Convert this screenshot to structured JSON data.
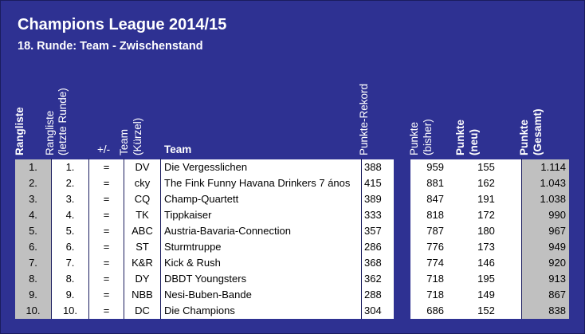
{
  "title": "Champions League 2014/15",
  "subtitle": "18. Runde: Team - Zwischenstand",
  "headers": {
    "rangliste": "Rangliste",
    "rangliste_letzte_1": "Rangliste",
    "rangliste_letzte_2": "(letzte Runde)",
    "plusminus": "+/-",
    "team_kuerzel_1": "Team",
    "team_kuerzel_2": "(Kürzel)",
    "team": "Team",
    "rekord": "Punkte-Rekord",
    "bisher_1": "Punkte",
    "bisher_2": "(bisher)",
    "neu_1": "Punkte",
    "neu_2": "(neu)",
    "gesamt_1": "Punkte",
    "gesamt_2": "(Gesamt)"
  },
  "rows": [
    {
      "rank": "1.",
      "last_rank": "1.",
      "change": "=",
      "abbr": "DV",
      "team": "Die Vergesslichen",
      "record": "388",
      "prev": "959",
      "new": "155",
      "total": "1.114"
    },
    {
      "rank": "2.",
      "last_rank": "2.",
      "change": "=",
      "abbr": "cky",
      "team": "The Fink Funny Havana Drinkers 7 ános",
      "record": "415",
      "prev": "881",
      "new": "162",
      "total": "1.043"
    },
    {
      "rank": "3.",
      "last_rank": "3.",
      "change": "=",
      "abbr": "CQ",
      "team": "Champ-Quartett",
      "record": "389",
      "prev": "847",
      "new": "191",
      "total": "1.038"
    },
    {
      "rank": "4.",
      "last_rank": "4.",
      "change": "=",
      "abbr": "TK",
      "team": "Tippkaiser",
      "record": "333",
      "prev": "818",
      "new": "172",
      "total": "990"
    },
    {
      "rank": "5.",
      "last_rank": "5.",
      "change": "=",
      "abbr": "ABC",
      "team": "Austria-Bavaria-Connection",
      "record": "357",
      "prev": "787",
      "new": "180",
      "total": "967"
    },
    {
      "rank": "6.",
      "last_rank": "6.",
      "change": "=",
      "abbr": "ST",
      "team": "Sturmtruppe",
      "record": "286",
      "prev": "776",
      "new": "173",
      "total": "949"
    },
    {
      "rank": "7.",
      "last_rank": "7.",
      "change": "=",
      "abbr": "K&R",
      "team": "Kick & Rush",
      "record": "368",
      "prev": "774",
      "new": "146",
      "total": "920"
    },
    {
      "rank": "8.",
      "last_rank": "8.",
      "change": "=",
      "abbr": "DY",
      "team": "DBDT Youngsters",
      "record": "362",
      "prev": "718",
      "new": "195",
      "total": "913"
    },
    {
      "rank": "9.",
      "last_rank": "9.",
      "change": "=",
      "abbr": "NBB",
      "team": "Nesi-Buben-Bande",
      "record": "288",
      "prev": "718",
      "new": "149",
      "total": "867"
    },
    {
      "rank": "10.",
      "last_rank": "10.",
      "change": "=",
      "abbr": "DC",
      "team": "Die Champions",
      "record": "304",
      "prev": "686",
      "new": "152",
      "total": "838"
    }
  ]
}
